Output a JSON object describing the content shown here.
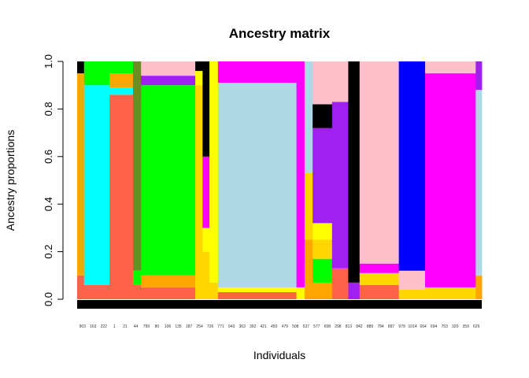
{
  "chart_data": {
    "type": "bar",
    "stacked": true,
    "title": "Ancestry matrix",
    "xlabel": "Individuals",
    "ylabel": "Ancestry proportions",
    "ylim": [
      0,
      1
    ],
    "yticks": [
      "0.0",
      "0.2",
      "0.4",
      "0.6",
      "0.8",
      "1.0"
    ],
    "grid": false,
    "legend": "none",
    "individual_labels": [
      "903",
      "163",
      "222",
      "1",
      "21",
      "44",
      "799",
      "80",
      "106",
      "135",
      "187",
      "254",
      "726",
      "771",
      "943",
      "363",
      "392",
      "421",
      "450",
      "479",
      "508",
      "537",
      "577",
      "608",
      "298",
      "813",
      "842",
      "889",
      "784",
      "897",
      "979",
      "1014",
      "664",
      "694",
      "753",
      "320",
      "359",
      "626"
    ],
    "cluster_colors": {
      "K1": "#FF6347",
      "K2": "#00FFFF",
      "K3": "#FFA500",
      "K4": "#00FF00",
      "K5": "#6B8E23",
      "K6": "#FFD700",
      "K7": "#FFFF00",
      "K8": "#ADD8E6",
      "K9": "#FF00FF",
      "K10": "#A020F0",
      "K11": "#000000",
      "K12": "#FFC0CB",
      "K13": "#0000FF"
    },
    "segments": [
      {
        "start": 0.0,
        "end": 0.017,
        "values": {
          "K3": 0.85,
          "K1": 0.1,
          "K11": 0.05
        }
      },
      {
        "start": 0.017,
        "end": 0.08,
        "values": {
          "K2": 0.84,
          "K4": 0.1,
          "K1": 0.06
        }
      },
      {
        "start": 0.08,
        "end": 0.138,
        "values": {
          "K1": 0.86,
          "K3": 0.06,
          "K4": 0.05,
          "K2": 0.03
        }
      },
      {
        "start": 0.138,
        "end": 0.158,
        "values": {
          "K5": 0.88,
          "K1": 0.06,
          "K4": 0.06
        }
      },
      {
        "start": 0.158,
        "end": 0.292,
        "values": {
          "K4": 0.8,
          "K12": 0.06,
          "K1": 0.05,
          "K3": 0.05,
          "K10": 0.04
        }
      },
      {
        "start": 0.292,
        "end": 0.31,
        "values": {
          "K6": 0.9,
          "K7": 0.06,
          "K11": 0.04
        }
      },
      {
        "start": 0.31,
        "end": 0.327,
        "values": {
          "K11": 0.4,
          "K9": 0.3,
          "K6": 0.2,
          "K7": 0.1
        }
      },
      {
        "start": 0.327,
        "end": 0.348,
        "values": {
          "K7": 0.93,
          "K6": 0.07
        }
      },
      {
        "start": 0.348,
        "end": 0.542,
        "values": {
          "K8": 0.86,
          "K9": 0.09,
          "K1": 0.03,
          "K7": 0.02
        }
      },
      {
        "start": 0.542,
        "end": 0.562,
        "values": {
          "K9": 0.95,
          "K7": 0.05
        }
      },
      {
        "start": 0.562,
        "end": 0.582,
        "values": {
          "K8": 0.47,
          "K6": 0.28,
          "K3": 0.25
        }
      },
      {
        "start": 0.582,
        "end": 0.63,
        "values": {
          "K12": 0.18,
          "K11": 0.1,
          "K3": 0.07,
          "K6": 0.08,
          "K4": 0.1,
          "K10": 0.4,
          "K7": 0.07
        }
      },
      {
        "start": 0.63,
        "end": 0.67,
        "values": {
          "K10": 0.7,
          "K12": 0.17,
          "K1": 0.13
        }
      },
      {
        "start": 0.67,
        "end": 0.698,
        "values": {
          "K11": 0.93,
          "K10": 0.07
        }
      },
      {
        "start": 0.698,
        "end": 0.795,
        "values": {
          "K12": 0.85,
          "K1": 0.06,
          "K6": 0.05,
          "K9": 0.04
        }
      },
      {
        "start": 0.795,
        "end": 0.86,
        "values": {
          "K13": 0.88,
          "K12": 0.08,
          "K6": 0.04
        }
      },
      {
        "start": 0.86,
        "end": 0.985,
        "values": {
          "K9": 0.9,
          "K12": 0.05,
          "K6": 0.05
        }
      },
      {
        "start": 0.985,
        "end": 1.0,
        "values": {
          "K8": 0.78,
          "K3": 0.1,
          "K10": 0.12
        }
      }
    ]
  }
}
